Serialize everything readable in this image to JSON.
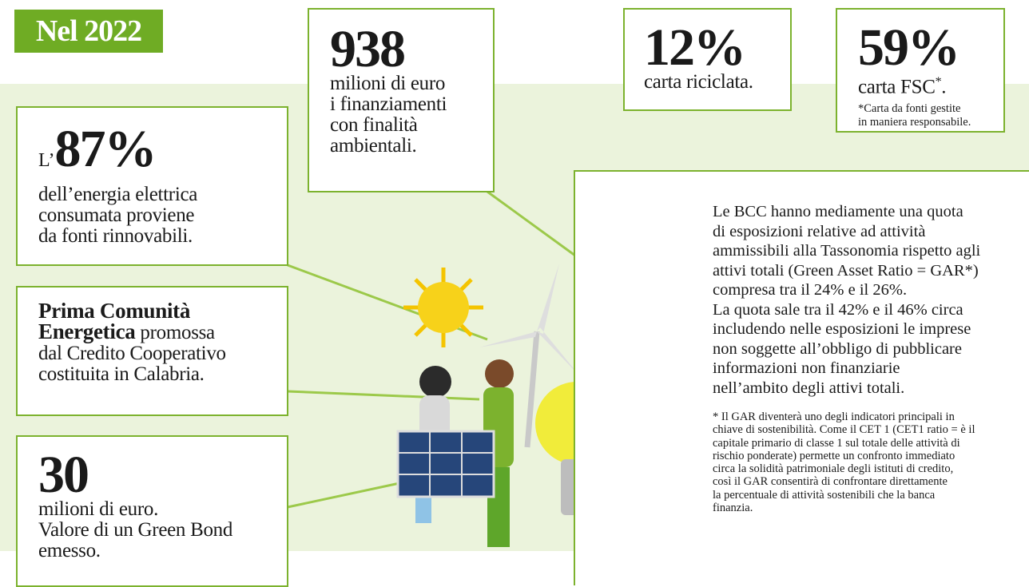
{
  "header": {
    "title": "Nel 2022"
  },
  "boxes": {
    "financing": {
      "figure": "938",
      "lines": [
        "milioni di euro",
        "i finanziamenti",
        "con finalità",
        "ambientali."
      ]
    },
    "recycled": {
      "figure": "12%",
      "lines": [
        "carta riciclata."
      ]
    },
    "fsc": {
      "figure": "59%",
      "line_text": "carta FSC",
      "line_mark": "*",
      "line_end": ".",
      "note": [
        "*Carta da fonti gestite",
        "in maniera responsabile."
      ]
    },
    "energy": {
      "prefix": "L’",
      "figure": "87%",
      "lines": [
        "dell’energia elettrica",
        "consumata proviene",
        "da fonti rinnovabili."
      ]
    },
    "community": {
      "title_lines": [
        "Prima Comunità",
        "Energetica"
      ],
      "lines": [
        "promossa",
        "dal Credito Cooperativo",
        "costituita in Calabria."
      ]
    },
    "bond": {
      "figure": "30",
      "lines": [
        "milioni di euro.",
        "Valore di un Green Bond",
        "emesso."
      ]
    },
    "gar": {
      "paragraph": [
        "Le BCC hanno mediamente una quota",
        "di esposizioni relative ad attività",
        "ammissibili alla Tassonomia rispetto agli",
        "attivi totali (Green Asset Ratio = GAR*)",
        "compresa tra il 24% e il 26%.",
        "La quota sale tra il 42% e il 46% circa",
        "includendo nelle esposizioni le imprese",
        "non soggette all’obbligo di pubblicare",
        "informazioni non finanziarie",
        "nell’ambito degli attivi totali."
      ],
      "footnote": [
        "* Il GAR diventerà uno degli indicatori principali in",
        "chiave di sostenibilità. Come il CET 1 (CET1 ratio = è il",
        "capitale primario di classe 1 sul totale delle attività di",
        "rischio ponderate) permette un confronto immediato",
        "circa la solidità patrimoniale degli istituti di credito,",
        "così il GAR consentirà di confrontare direttamente",
        "la percentuale di attività sostenibili che la banca",
        "finanzia."
      ]
    }
  }
}
